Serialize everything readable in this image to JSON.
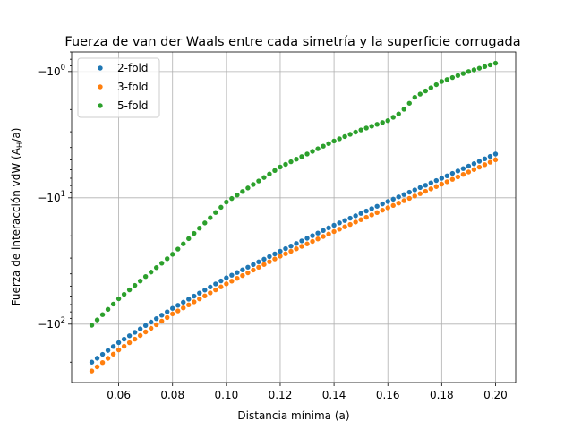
{
  "chart_data": {
    "type": "scatter",
    "title": "Fuerza de van der Waals entre cada simetría y la superficie corrugada",
    "xlabel": "Distancia mínima (a)",
    "ylabel_main": "Fuerza de interacción vdW (A",
    "ylabel_sub": "H",
    "ylabel_end": "/a)",
    "yscale": "symlog-negative",
    "xlim": [
      0.0425,
      0.2075
    ],
    "ylim_magnitude": [
      0.7,
      290
    ],
    "grid": true,
    "legend_position": "upper left",
    "x_ticks": [
      {
        "value": 0.06,
        "label": "0.06"
      },
      {
        "value": 0.08,
        "label": "0.08"
      },
      {
        "value": 0.1,
        "label": "0.10"
      },
      {
        "value": 0.12,
        "label": "0.12"
      },
      {
        "value": 0.14,
        "label": "0.14"
      },
      {
        "value": 0.16,
        "label": "0.16"
      },
      {
        "value": 0.18,
        "label": "0.18"
      },
      {
        "value": 0.2,
        "label": "0.20"
      }
    ],
    "y_ticks": [
      {
        "magnitude": 1,
        "base": "−10",
        "exp": "0"
      },
      {
        "magnitude": 10,
        "base": "−10",
        "exp": "1"
      },
      {
        "magnitude": 100,
        "base": "−10",
        "exp": "2"
      }
    ],
    "x_range": {
      "start": 0.05,
      "end": 0.2,
      "count": 76
    },
    "series": [
      {
        "name": "2-fold",
        "color": "#1f77b4",
        "anchors_x": [
          0.05,
          0.06,
          0.08,
          0.1,
          0.12,
          0.14,
          0.16,
          0.18,
          0.2
        ],
        "anchors_y": [
          -200,
          -140,
          -75,
          -43,
          -26.5,
          -16.5,
          -10.7,
          -7.0,
          -4.5
        ]
      },
      {
        "name": "3-fold",
        "color": "#ff7f0e",
        "anchors_x": [
          0.05,
          0.06,
          0.08,
          0.1,
          0.12,
          0.14,
          0.16,
          0.18,
          0.2
        ],
        "anchors_y": [
          -235,
          -160,
          -83,
          -48,
          -29,
          -18.5,
          -12.0,
          -7.8,
          -5.0
        ]
      },
      {
        "name": "5-fold",
        "color": "#2ca02c",
        "anchors_x": [
          0.05,
          0.06,
          0.08,
          0.1,
          0.12,
          0.14,
          0.15,
          0.16,
          0.165,
          0.17,
          0.18,
          0.19,
          0.2
        ],
        "anchors_y": [
          -102,
          -63,
          -28,
          -10.8,
          -5.7,
          -3.55,
          -2.9,
          -2.45,
          -2.1,
          -1.6,
          -1.2,
          -1.0,
          -0.86
        ]
      }
    ]
  }
}
